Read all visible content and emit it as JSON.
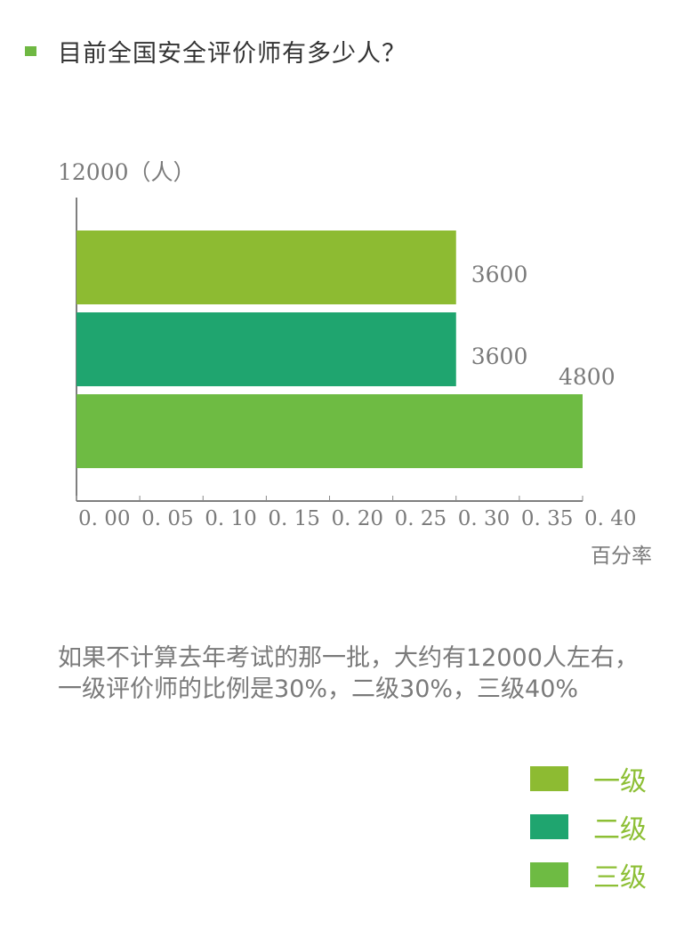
{
  "header": {
    "title": "目前全国安全评价师有多少人？"
  },
  "chart_data": {
    "type": "bar",
    "orientation": "horizontal",
    "unit_label": "12000（人）",
    "xlabel": "百分率",
    "xlim": [
      0,
      0.4
    ],
    "xticks": [
      "0.00",
      "0.05",
      "0.10",
      "0.15",
      "0.20",
      "0.25",
      "0.30",
      "0.35",
      "0.40"
    ],
    "categories": [
      "一级",
      "二级",
      "三级"
    ],
    "values": [
      0.3,
      0.3,
      0.4
    ],
    "data_labels": [
      "3600",
      "3600",
      "4800"
    ],
    "colors": [
      "#8dbb32",
      "#1fa56f",
      "#6ebb43"
    ]
  },
  "summary": {
    "text": "如果不计算去年考试的那一批，大约有12000人左右，一级评价师的比例是30%，二级30%，三级40%"
  },
  "legend": [
    {
      "label": "一级",
      "color": "#8dbb32"
    },
    {
      "label": "二级",
      "color": "#1fa56f"
    },
    {
      "label": "三级",
      "color": "#6ebb43"
    }
  ]
}
